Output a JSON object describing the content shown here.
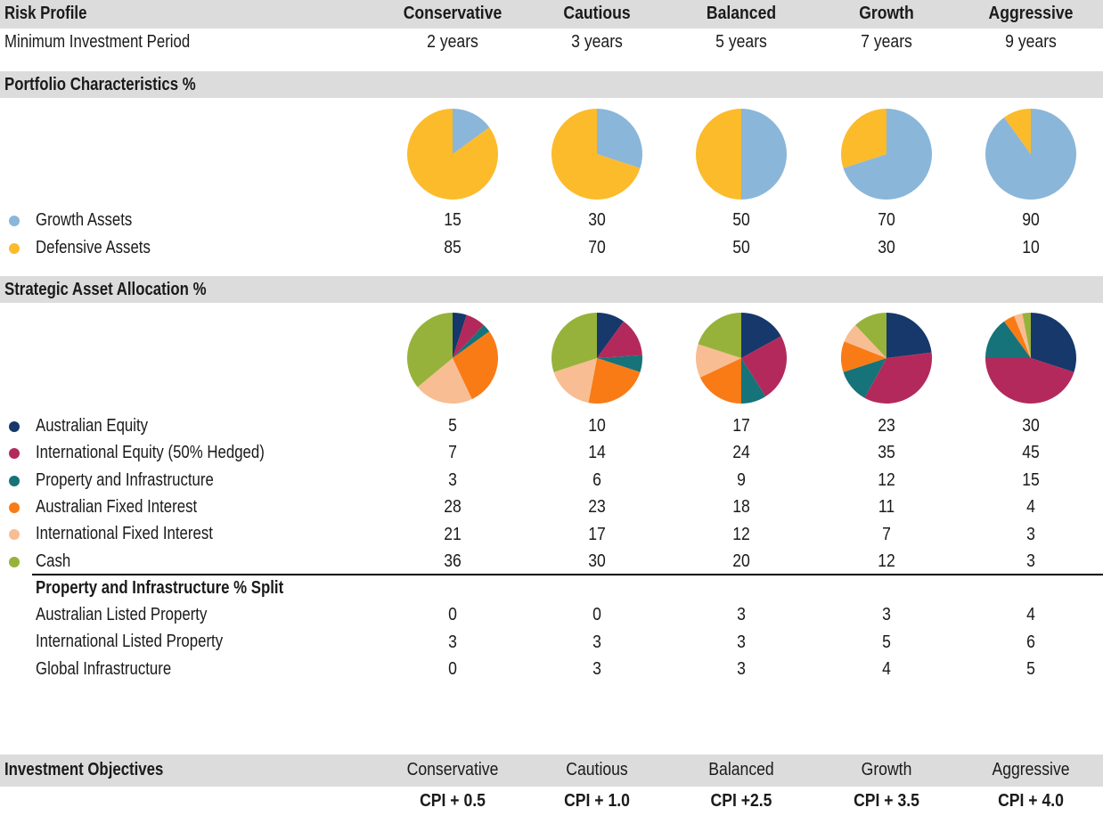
{
  "header": {
    "title": "Risk Profile",
    "profiles": [
      "Conservative",
      "Cautious",
      "Balanced",
      "Growth",
      "Aggressive"
    ],
    "period_label": "Minimum Investment Period",
    "periods": [
      "2 years",
      "3 years",
      "5 years",
      "7 years",
      "9 years"
    ]
  },
  "sections": {
    "portfolio": "Portfolio Characteristics %",
    "strategic": "Strategic Asset Allocation %",
    "property_split": "Property and Infrastructure % Split",
    "objectives": "Investment Objectives"
  },
  "colors": {
    "band": "#dcdcdc",
    "growth": "#8ab6d9",
    "defensive": "#fbbb2b",
    "aus_equity": "#16386a",
    "intl_equity": "#b3295b",
    "property": "#157379",
    "aus_fixed": "#f97b16",
    "intl_fixed": "#f8bd92",
    "cash": "#97b23a"
  },
  "chart_data": [
    {
      "type": "pie",
      "name": "Portfolio Characteristics %",
      "categories": [
        "Conservative",
        "Cautious",
        "Balanced",
        "Growth",
        "Aggressive"
      ],
      "series": [
        {
          "name": "Growth Assets",
          "color": "#8ab6d9",
          "values": [
            15,
            30,
            50,
            70,
            90
          ]
        },
        {
          "name": "Defensive Assets",
          "color": "#fbbb2b",
          "values": [
            85,
            70,
            50,
            30,
            10
          ]
        }
      ]
    },
    {
      "type": "pie",
      "name": "Strategic Asset Allocation %",
      "categories": [
        "Conservative",
        "Cautious",
        "Balanced",
        "Growth",
        "Aggressive"
      ],
      "series": [
        {
          "name": "Australian Equity",
          "color": "#16386a",
          "values": [
            5,
            10,
            17,
            23,
            30
          ]
        },
        {
          "name": "International Equity (50% Hedged)",
          "color": "#b3295b",
          "values": [
            7,
            14,
            24,
            35,
            45
          ]
        },
        {
          "name": "Property and Infrastructure",
          "color": "#157379",
          "values": [
            3,
            6,
            9,
            12,
            15
          ]
        },
        {
          "name": "Australian Fixed Interest",
          "color": "#f97b16",
          "values": [
            28,
            23,
            18,
            11,
            4
          ]
        },
        {
          "name": "International Fixed Interest",
          "color": "#f8bd92",
          "values": [
            21,
            17,
            12,
            7,
            3
          ]
        },
        {
          "name": "Cash",
          "color": "#97b23a",
          "values": [
            36,
            30,
            20,
            12,
            3
          ]
        }
      ]
    },
    {
      "type": "table",
      "name": "Property and Infrastructure % Split",
      "categories": [
        "Conservative",
        "Cautious",
        "Balanced",
        "Growth",
        "Aggressive"
      ],
      "series": [
        {
          "name": "Australian Listed Property",
          "values": [
            0,
            0,
            3,
            3,
            4
          ]
        },
        {
          "name": "International Listed Property",
          "values": [
            3,
            3,
            3,
            5,
            6
          ]
        },
        {
          "name": "Global Infrastructure",
          "values": [
            0,
            3,
            3,
            4,
            5
          ]
        }
      ]
    }
  ],
  "objectives": {
    "profiles": [
      "Conservative",
      "Cautious",
      "Balanced",
      "Growth",
      "Aggressive"
    ],
    "targets": [
      "CPI + 0.5",
      "CPI + 1.0",
      "CPI +2.5",
      "CPI + 3.5",
      "CPI + 4.0"
    ]
  }
}
